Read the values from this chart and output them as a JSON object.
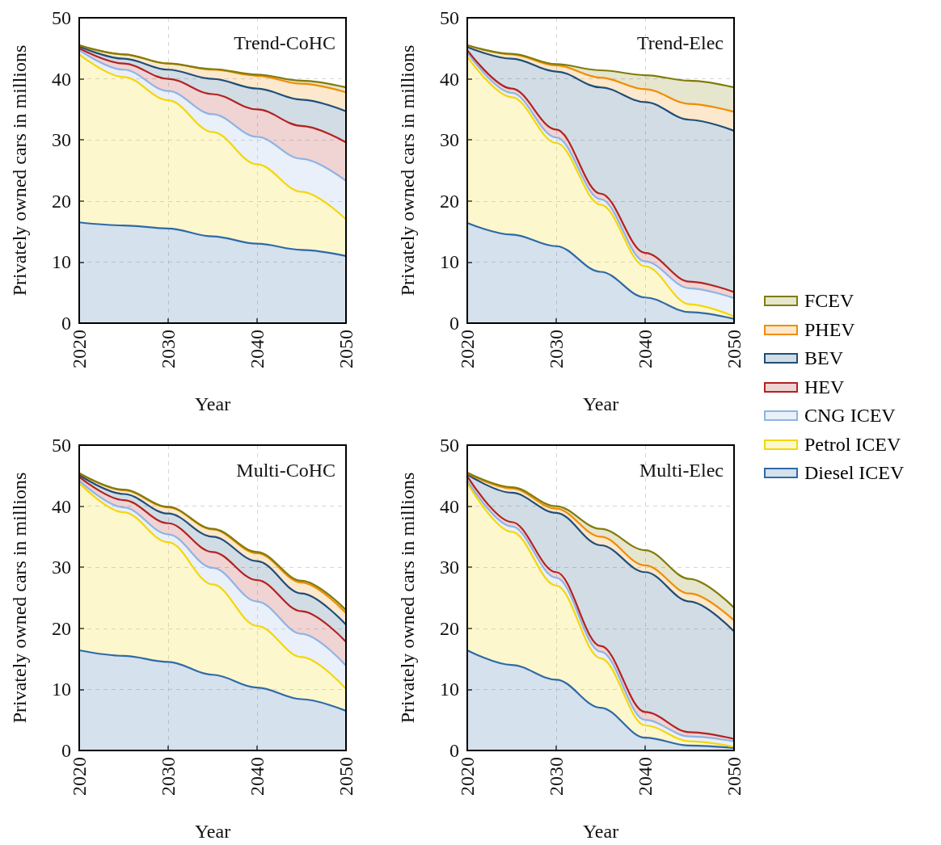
{
  "chart_data": [
    {
      "type": "area",
      "title": "Trend-CoHC",
      "xlabel": "Year",
      "ylabel": "Privately owned cars in millions",
      "stacked": true,
      "x": [
        2020,
        2025,
        2030,
        2035,
        2040,
        2045,
        2050
      ],
      "xlim": [
        2020,
        2050
      ],
      "xticks": [
        2020,
        2030,
        2040,
        2050
      ],
      "ylim": [
        0,
        50
      ],
      "yticks": [
        0,
        10,
        20,
        30,
        40,
        50
      ],
      "grid": true,
      "legend": "right",
      "marker": "none",
      "series": [
        {
          "name": "Diesel ICEV",
          "color": "#2e6aa6",
          "values": [
            16.5,
            16,
            15.5,
            14.2,
            13,
            12,
            11
          ]
        },
        {
          "name": "Petrol ICEV",
          "color": "#f5d60a",
          "values": [
            27.5,
            24.3,
            21,
            17.1,
            13,
            9.5,
            6
          ]
        },
        {
          "name": "CNG ICEV",
          "color": "#8fb4e3",
          "values": [
            0.7,
            1.2,
            1.5,
            2.9,
            4.5,
            5.4,
            6.3
          ]
        },
        {
          "name": "HEV",
          "color": "#b22222",
          "values": [
            0.3,
            1,
            2,
            3.3,
            4.5,
            5.4,
            6.3
          ]
        },
        {
          "name": "BEV",
          "color": "#1f4e79",
          "values": [
            0.3,
            0.8,
            1.5,
            2.5,
            3.4,
            4.3,
            5.1
          ]
        },
        {
          "name": "PHEV",
          "color": "#f08c00",
          "values": [
            0.2,
            0.7,
            1,
            1.5,
            2.1,
            2.6,
            3.1
          ]
        },
        {
          "name": "FCEV",
          "color": "#807c0a",
          "values": [
            0,
            0,
            0,
            0.1,
            0.2,
            0.5,
            0.8
          ]
        }
      ]
    },
    {
      "type": "area",
      "title": "Trend-Elec",
      "xlabel": "Year",
      "ylabel": "Privately owned cars in millions",
      "stacked": true,
      "x": [
        2020,
        2025,
        2030,
        2035,
        2040,
        2045,
        2050
      ],
      "xlim": [
        2020,
        2050
      ],
      "xticks": [
        2020,
        2030,
        2040,
        2050
      ],
      "ylim": [
        0,
        50
      ],
      "yticks": [
        0,
        10,
        20,
        30,
        40,
        50
      ],
      "grid": true,
      "legend": "right",
      "marker": "none",
      "series": [
        {
          "name": "Diesel ICEV",
          "color": "#2e6aa6",
          "values": [
            16.4,
            14.5,
            12.6,
            8.4,
            4.2,
            1.8,
            0.7
          ]
        },
        {
          "name": "Petrol ICEV",
          "color": "#f5d60a",
          "values": [
            27.2,
            22.5,
            16.9,
            11,
            5.1,
            1.3,
            0.4
          ]
        },
        {
          "name": "CNG ICEV",
          "color": "#8fb4e3",
          "values": [
            0.7,
            0.7,
            0.9,
            0.9,
            0.8,
            2.6,
            3.0
          ]
        },
        {
          "name": "HEV",
          "color": "#b22222",
          "values": [
            0.4,
            0.7,
            1.3,
            0.9,
            1.4,
            1.1,
            1.0
          ]
        },
        {
          "name": "BEV",
          "color": "#1f4e79",
          "values": [
            0.5,
            4.9,
            9.5,
            17.4,
            24.7,
            26.5,
            26.4
          ]
        },
        {
          "name": "PHEV",
          "color": "#f08c00",
          "values": [
            0.3,
            0.7,
            1.0,
            1.6,
            2.1,
            2.6,
            3.1
          ]
        },
        {
          "name": "FCEV",
          "color": "#807c0a",
          "values": [
            0,
            0.1,
            0.2,
            1.2,
            2.3,
            3.8,
            4.0
          ]
        }
      ]
    },
    {
      "type": "area",
      "title": "Multi-CoHC",
      "xlabel": "Year",
      "ylabel": "Privately owned cars in millions",
      "stacked": true,
      "x": [
        2020,
        2025,
        2030,
        2035,
        2040,
        2045,
        2050
      ],
      "xlim": [
        2020,
        2050
      ],
      "xticks": [
        2020,
        2030,
        2040,
        2050
      ],
      "ylim": [
        0,
        50
      ],
      "yticks": [
        0,
        10,
        20,
        30,
        40,
        50
      ],
      "grid": true,
      "legend": "right",
      "marker": "none",
      "series": [
        {
          "name": "Diesel ICEV",
          "color": "#2e6aa6",
          "values": [
            16.4,
            15.5,
            14.5,
            12.4,
            10.3,
            8.4,
            6.5
          ]
        },
        {
          "name": "Petrol ICEV",
          "color": "#f5d60a",
          "values": [
            27.4,
            23.5,
            19.6,
            14.8,
            10.1,
            6.9,
            3.6
          ]
        },
        {
          "name": "CNG ICEV",
          "color": "#8fb4e3",
          "values": [
            0.4,
            0.8,
            1.3,
            2.7,
            4.0,
            3.8,
            3.8
          ]
        },
        {
          "name": "HEV",
          "color": "#b22222",
          "values": [
            0.6,
            1.2,
            1.8,
            2.6,
            3.5,
            3.7,
            3.9
          ]
        },
        {
          "name": "BEV",
          "color": "#1f4e79",
          "values": [
            0.3,
            1.0,
            1.6,
            2.5,
            3.1,
            2.9,
            2.8
          ]
        },
        {
          "name": "PHEV",
          "color": "#f08c00",
          "values": [
            0.3,
            0.6,
            1.0,
            1.2,
            1.3,
            1.8,
            1.9
          ]
        },
        {
          "name": "FCEV",
          "color": "#807c0a",
          "values": [
            0,
            0.1,
            0.1,
            0.1,
            0.2,
            0.3,
            0.5
          ]
        }
      ]
    },
    {
      "type": "area",
      "title": "Multi-Elec",
      "xlabel": "Year",
      "ylabel": "Privately owned cars in millions",
      "stacked": true,
      "x": [
        2020,
        2025,
        2030,
        2035,
        2040,
        2045,
        2050
      ],
      "xlim": [
        2020,
        2050
      ],
      "xticks": [
        2020,
        2030,
        2040,
        2050
      ],
      "ylim": [
        0,
        50
      ],
      "yticks": [
        0,
        10,
        20,
        30,
        40,
        50
      ],
      "grid": true,
      "legend": "right",
      "marker": "none",
      "series": [
        {
          "name": "Diesel ICEV",
          "color": "#2e6aa6",
          "values": [
            16.4,
            14.0,
            11.6,
            7.0,
            2.1,
            0.8,
            0.4
          ]
        },
        {
          "name": "Petrol ICEV",
          "color": "#f5d60a",
          "values": [
            27.4,
            21.8,
            15.4,
            8.1,
            2.0,
            0.7,
            0.2
          ]
        },
        {
          "name": "CNG ICEV",
          "color": "#8fb4e3",
          "values": [
            0.4,
            0.9,
            1.3,
            1.1,
            0.9,
            0.8,
            0.9
          ]
        },
        {
          "name": "HEV",
          "color": "#b22222",
          "values": [
            0.7,
            0.7,
            0.9,
            0.9,
            1.3,
            0.7,
            0.4
          ]
        },
        {
          "name": "BEV",
          "color": "#1f4e79",
          "values": [
            0.3,
            4.8,
            9.7,
            16.5,
            22.9,
            21.4,
            17.6
          ]
        },
        {
          "name": "PHEV",
          "color": "#f08c00",
          "values": [
            0.2,
            0.7,
            0.7,
            1.4,
            1.1,
            1.3,
            1.8
          ]
        },
        {
          "name": "FCEV",
          "color": "#807c0a",
          "values": [
            0.1,
            0.2,
            0.4,
            1.3,
            2.5,
            2.4,
            2.1
          ]
        }
      ]
    }
  ]
}
